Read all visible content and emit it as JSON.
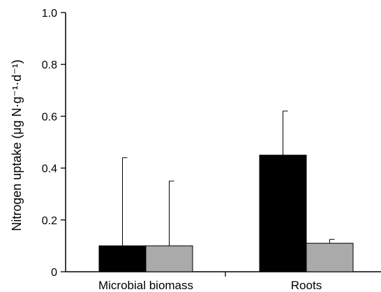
{
  "chart_data": {
    "type": "bar",
    "categories": [
      "Microbial biomass",
      "Roots"
    ],
    "series": [
      {
        "color": "#000000",
        "values": [
          0.1,
          0.45
        ],
        "error_upper": [
          0.44,
          0.62
        ]
      },
      {
        "color": "#aaaaaa",
        "values": [
          0.1,
          0.11
        ],
        "error_upper": [
          0.35,
          0.125
        ]
      }
    ],
    "ylabel": "Nitrogen uptake (μg N·g⁻¹·d⁻¹)",
    "xlabel": "",
    "ylim": [
      0,
      1.0
    ],
    "yticks": [
      "0",
      "0.2",
      "0.4",
      "0.6",
      "0.8",
      "1.0"
    ],
    "grid": false
  }
}
